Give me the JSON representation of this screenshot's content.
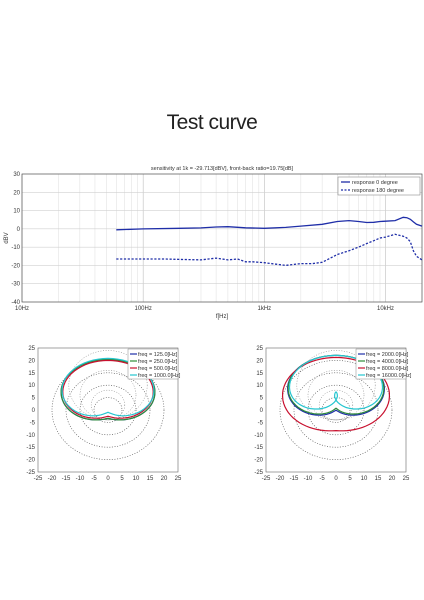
{
  "page": {
    "title": "Test curve"
  },
  "chart_data": [
    {
      "type": "line",
      "title": "sensitivity at 1k = -29.713[dBV], front-back ratio=19.75[dB]",
      "xlabel": "f[Hz]",
      "ylabel": "dBV",
      "x_scale": "log",
      "xlim": [
        10,
        20000
      ],
      "ylim": [
        -40,
        30
      ],
      "x_tick_labels": [
        "10Hz",
        "100Hz",
        "1kHz",
        "10kHz"
      ],
      "y_tick_labels": [
        "30",
        "20",
        "10",
        "0",
        "-10",
        "-20",
        "-30",
        "-40"
      ],
      "grid": true,
      "legend_position": "top-right",
      "colors": {
        "response_0": "#1f2ea8",
        "response_180": "#1f2ea8"
      },
      "series": [
        {
          "name": "response 0 degree",
          "style": "solid",
          "x": [
            60,
            100,
            200,
            300,
            400,
            500,
            700,
            1000,
            1500,
            2000,
            3000,
            4000,
            5000,
            6000,
            7000,
            8000,
            9000,
            10000,
            12000,
            14000,
            15000,
            16000,
            17000,
            18000,
            20000
          ],
          "y": [
            -0.5,
            0,
            0.3,
            0.5,
            1,
            1.2,
            0.6,
            0.3,
            0.8,
            1.5,
            2.5,
            4,
            4.5,
            4,
            3.5,
            3.6,
            4,
            4.2,
            4.5,
            6.3,
            6.1,
            5.2,
            3.8,
            2.5,
            1.5
          ]
        },
        {
          "name": "response 180 degree",
          "style": "dashed",
          "x": [
            60,
            100,
            150,
            200,
            300,
            400,
            500,
            600,
            700,
            800,
            1000,
            1500,
            2000,
            2500,
            3000,
            4000,
            5000,
            6000,
            7000,
            8000,
            9000,
            10000,
            12000,
            13000,
            14000,
            15000,
            16000,
            17000,
            18000,
            20000
          ],
          "y": [
            -16.5,
            -16.5,
            -16.5,
            -16.7,
            -17,
            -16,
            -17,
            -16.5,
            -18,
            -18,
            -18.5,
            -20,
            -19,
            -19,
            -18.3,
            -14,
            -12,
            -10,
            -8,
            -6.5,
            -5,
            -4.5,
            -3,
            -3.5,
            -4,
            -5,
            -7,
            -12,
            -15,
            -17
          ]
        }
      ]
    },
    {
      "type": "line",
      "subtype": "polar",
      "xlim": [
        -25,
        25
      ],
      "ylim": [
        -25,
        25
      ],
      "tick_labels": [
        "-25",
        "-20",
        "-15",
        "-10",
        "-5",
        "0",
        "5",
        "10",
        "15",
        "20",
        "25"
      ],
      "series": [
        {
          "name": "freq = 125.0[Hz]",
          "color": "#1f2ea8",
          "front": 20,
          "back": 9
        },
        {
          "name": "freq = 250.0[Hz]",
          "color": "#2e8b3a",
          "front": 20,
          "back": 9
        },
        {
          "name": "freq = 500.0[Hz]",
          "color": "#c8102e",
          "front": 19.5,
          "back": 8
        },
        {
          "name": "freq = 1000.0[Hz]",
          "color": "#26c6d0",
          "front": 20.5,
          "back": 6
        }
      ]
    },
    {
      "type": "line",
      "subtype": "polar",
      "xlim": [
        -25,
        25
      ],
      "ylim": [
        -25,
        25
      ],
      "tick_labels": [
        "-25",
        "-20",
        "-15",
        "-10",
        "-5",
        "0",
        "5",
        "10",
        "15",
        "20",
        "25"
      ],
      "series": [
        {
          "name": "freq = 2000.0[Hz]",
          "color": "#1f2ea8",
          "front": 22,
          "back": 5
        },
        {
          "name": "freq = 4000.0[Hz]",
          "color": "#2e8b3a",
          "front": 22,
          "back": 4
        },
        {
          "name": "freq = 8000.0[Hz]",
          "color": "#c8102e",
          "front": 21,
          "back": 15
        },
        {
          "name": "freq = 16000.0[Hz]",
          "color": "#26c6d0",
          "front": 22,
          "back": 2
        }
      ]
    }
  ]
}
